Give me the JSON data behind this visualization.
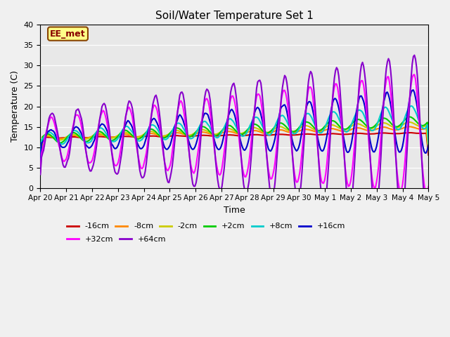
{
  "title": "Soil/Water Temperature Set 1",
  "xlabel": "Time",
  "ylabel": "Temperature (C)",
  "ylim": [
    0,
    40
  ],
  "series_names": [
    "-16cm",
    "-8cm",
    "-2cm",
    "+2cm",
    "+8cm",
    "+16cm",
    "+32cm",
    "+64cm"
  ],
  "series_colors": [
    "#cc0000",
    "#ff8800",
    "#cccc00",
    "#00cc00",
    "#00cccc",
    "#0000cc",
    "#ff00ff",
    "#8800cc"
  ],
  "series_lw": [
    1.5,
    1.5,
    1.5,
    1.5,
    1.5,
    1.5,
    1.5,
    1.5
  ],
  "xtick_labels": [
    "Apr 20",
    "Apr 21",
    "Apr 22",
    "Apr 23",
    "Apr 24",
    "Apr 25",
    "Apr 26",
    "Apr 27",
    "Apr 28",
    "Apr 29",
    "Apr 30",
    "May 1",
    "May 2",
    "May 3",
    "May 4",
    "May 5"
  ],
  "ytick_vals": [
    0,
    5,
    10,
    15,
    20,
    25,
    30,
    35,
    40
  ],
  "annotation_text": "EE_met",
  "annotation_bg": "#ffff88",
  "annotation_border": "#884400",
  "bg_color": "#e8e8e8",
  "fig_bg": "#f0f0f0",
  "n_days": 15
}
